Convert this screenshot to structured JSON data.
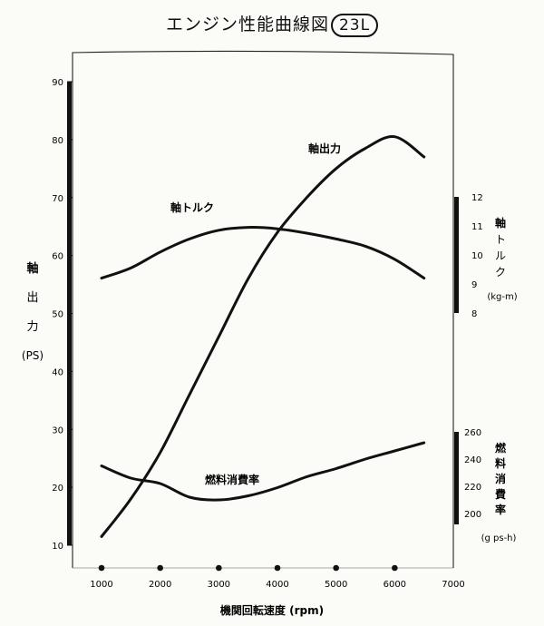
{
  "chart_data": {
    "type": "line",
    "title": "エンジン性能曲線図",
    "title_badge": "23L",
    "xlabel": "機関回転速度",
    "xlabel_unit": "(rpm)",
    "x_ticks": [
      "1000",
      "2000",
      "3000",
      "4000",
      "5000",
      "6000",
      "7000"
    ],
    "xlim": [
      1000,
      7000
    ],
    "grid": false,
    "left_axis": {
      "label_chars": [
        "軸",
        "出",
        "力"
      ],
      "unit": "(PS)",
      "ylim": [
        10,
        90
      ],
      "ticks": [
        "10",
        "20",
        "30",
        "40",
        "50",
        "60",
        "70",
        "80",
        "90"
      ]
    },
    "torque_axis": {
      "label_chars": [
        "軸",
        "ト",
        "ル",
        "ク"
      ],
      "unit": "(kg-m)",
      "ylim": [
        8,
        12
      ],
      "ticks": [
        "8",
        "9",
        "10",
        "11",
        "12"
      ]
    },
    "fuel_axis": {
      "label_chars": [
        "燃",
        "料",
        "消",
        "費",
        "率"
      ],
      "unit": "(g ps-h)",
      "ylim": [
        200,
        260
      ],
      "ticks": [
        "200",
        "220",
        "240",
        "260"
      ]
    },
    "series": [
      {
        "name": "軸出力",
        "axis": "left",
        "x": [
          1000,
          1500,
          2000,
          2500,
          3000,
          3500,
          4000,
          4500,
          5000,
          5500,
          6000,
          6500
        ],
        "y": [
          11.5,
          18,
          26,
          36,
          46,
          56,
          64,
          70,
          75,
          78.5,
          80.5,
          77
        ]
      },
      {
        "name": "軸トルク",
        "axis": "torque",
        "x": [
          1000,
          1500,
          2000,
          2500,
          3000,
          3500,
          4000,
          4500,
          5000,
          5500,
          6000,
          6500
        ],
        "y": [
          9.2,
          9.55,
          10.1,
          10.55,
          10.85,
          10.95,
          10.9,
          10.75,
          10.55,
          10.3,
          9.85,
          9.2
        ]
      },
      {
        "name": "燃料消費率",
        "axis": "fuel",
        "x": [
          1000,
          1500,
          2000,
          2500,
          3000,
          3500,
          4000,
          4500,
          5000,
          5500,
          6000,
          6500
        ],
        "y": [
          235,
          226,
          222,
          212,
          210,
          213,
          219,
          227,
          233,
          240,
          246,
          252
        ]
      }
    ],
    "annotations": [
      "軸出力",
      "軸トルク",
      "燃料消費率"
    ]
  }
}
